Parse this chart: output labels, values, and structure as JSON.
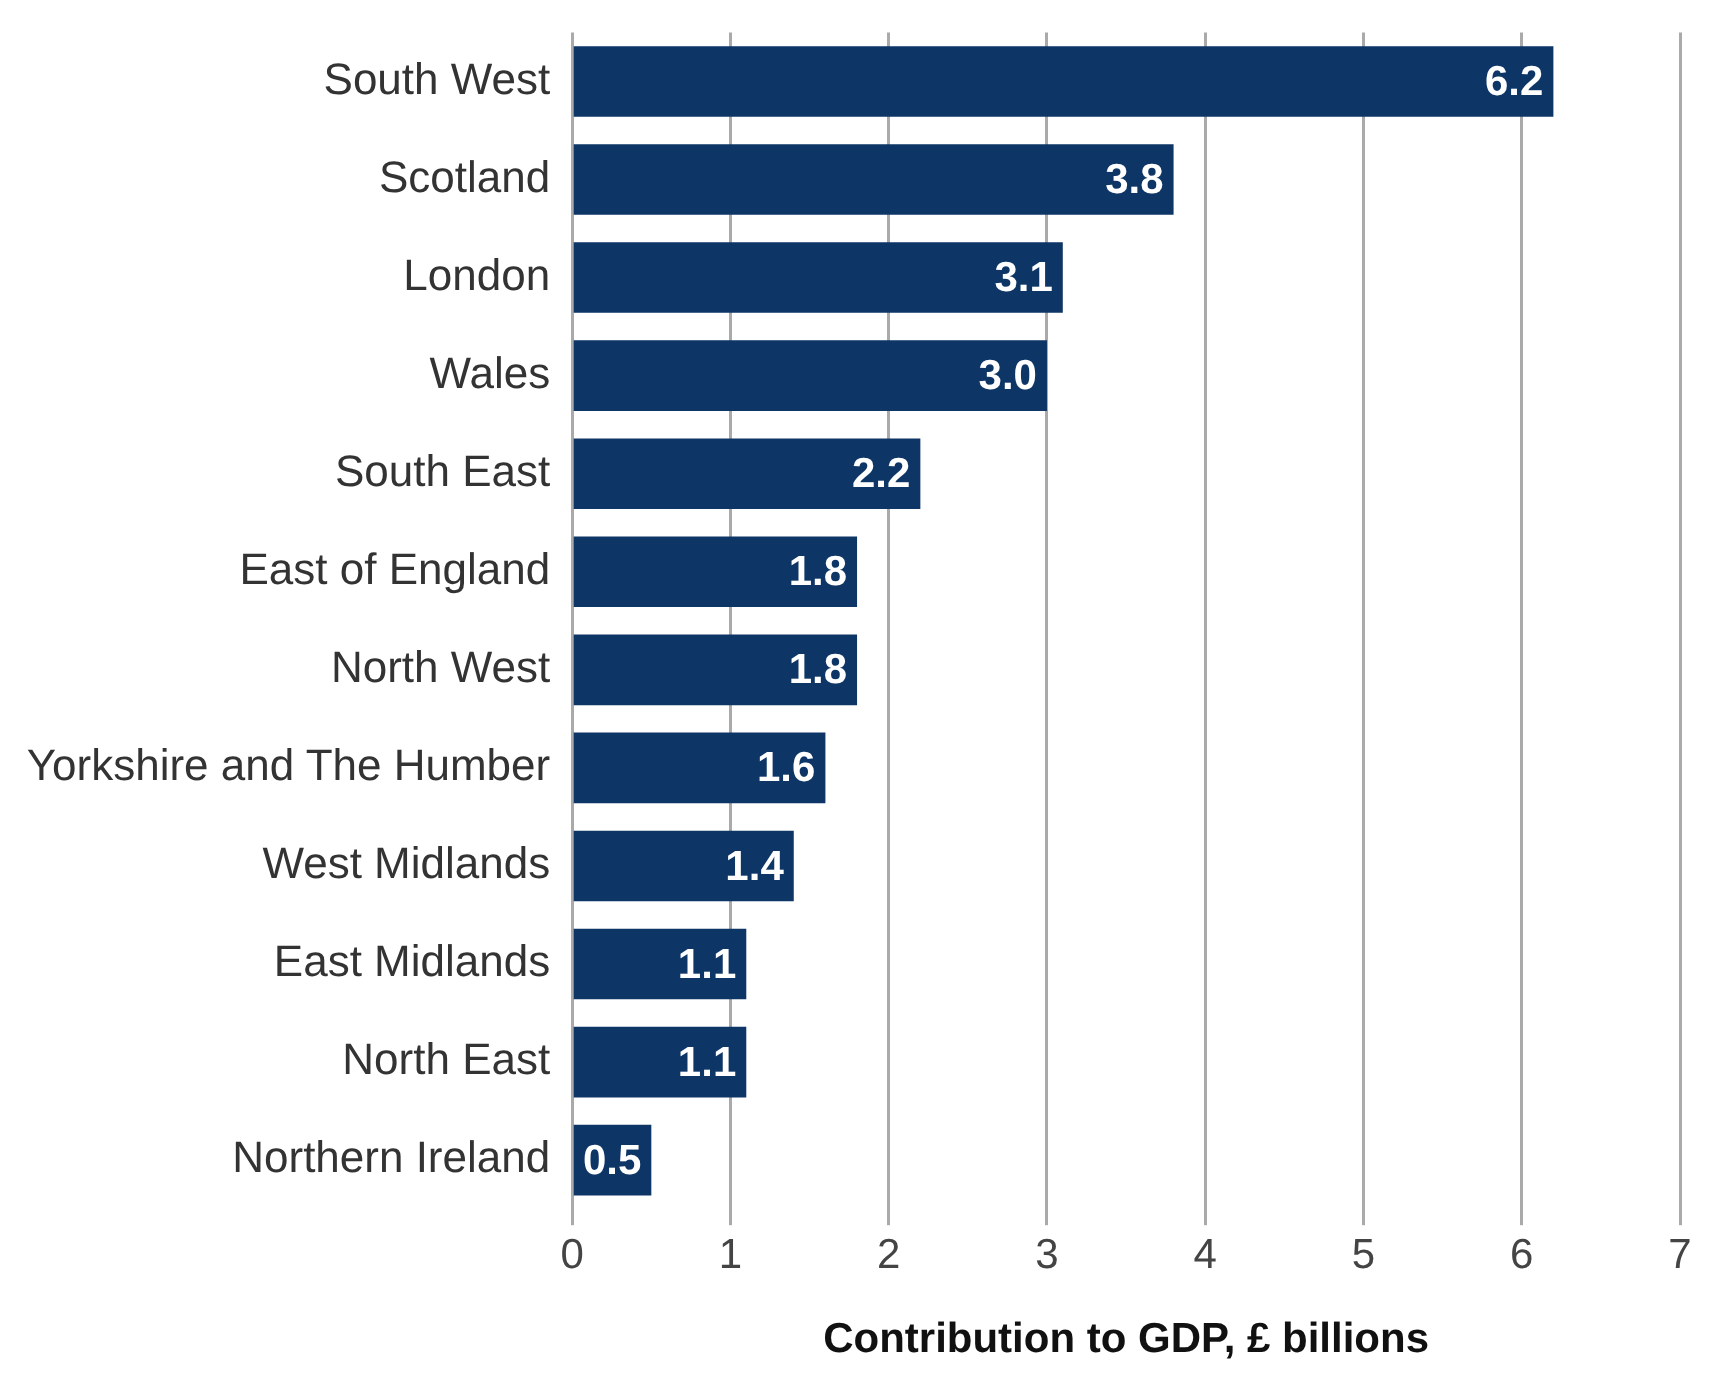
{
  "chart_data": {
    "type": "bar",
    "orientation": "horizontal",
    "xlabel": "Contribution to GDP, £ billions",
    "categories": [
      "South West",
      "Scotland",
      "London",
      "Wales",
      "South East",
      "East of England",
      "North West",
      "Yorkshire and The Humber",
      "West Midlands",
      "East Midlands",
      "North East",
      "Northern Ireland"
    ],
    "values": [
      6.2,
      3.8,
      3.1,
      3.0,
      2.2,
      1.8,
      1.8,
      1.6,
      1.4,
      1.1,
      1.1,
      0.5
    ],
    "value_labels": [
      "6.2",
      "3.8",
      "3.1",
      "3.0",
      "2.2",
      "1.8",
      "1.8",
      "1.6",
      "1.4",
      "1.1",
      "1.1",
      "0.5"
    ],
    "color": "#0d3566",
    "xlim": [
      0,
      7
    ],
    "xticks": [
      0,
      1,
      2,
      3,
      4,
      5,
      6,
      7
    ],
    "grid": "x"
  }
}
